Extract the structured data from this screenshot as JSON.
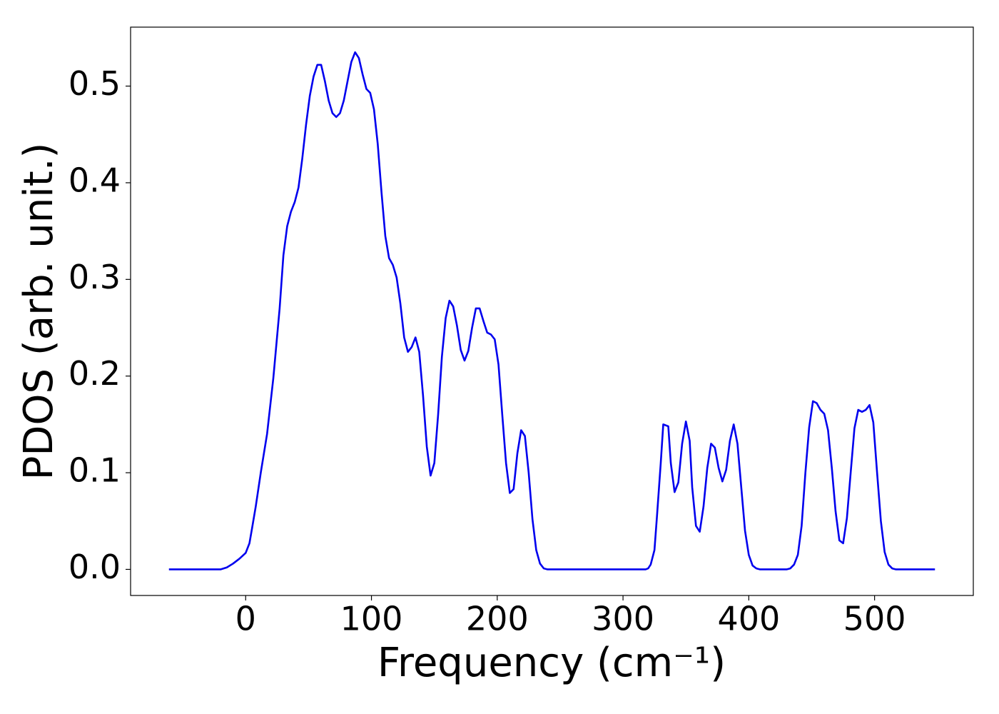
{
  "chart_data": {
    "type": "line",
    "xlabel": "Frequency (cm⁻¹)",
    "ylabel": "PDOS (arb. unit.)",
    "xlim": [
      -91.5,
      578.5
    ],
    "ylim": [
      -0.027,
      0.561
    ],
    "xticks": [
      0,
      100,
      200,
      300,
      400,
      500
    ],
    "yticks": [
      {
        "value": 0,
        "label": "0.0"
      },
      0.1,
      0.2,
      0.3,
      0.4,
      0.5
    ],
    "grid": false,
    "series": [
      {
        "color": "#0000ee",
        "x": [
          -61,
          -20,
          -15,
          -10,
          -5,
          0,
          3,
          5,
          8,
          12,
          17,
          22,
          27,
          30,
          33,
          36,
          39,
          42,
          45,
          48,
          51,
          54,
          57,
          60,
          63,
          66,
          69,
          72,
          75,
          78,
          81,
          84,
          87,
          90,
          93,
          96,
          99,
          102,
          105,
          108,
          111,
          114,
          117,
          120,
          123,
          126,
          129,
          132,
          135,
          138,
          141,
          144,
          147,
          150,
          153,
          156,
          159,
          162,
          165,
          168,
          171,
          174,
          177,
          180,
          183,
          186,
          189,
          192,
          195,
          198,
          201,
          204,
          207,
          210,
          213,
          216,
          219,
          222,
          225,
          228,
          231,
          234,
          237,
          240,
          318,
          320,
          322,
          325,
          327,
          330,
          332,
          336,
          338,
          341,
          344,
          347,
          350,
          353,
          355,
          358,
          361,
          364,
          367,
          370,
          373,
          376,
          379,
          382,
          385,
          388,
          391,
          394,
          397,
          400,
          403,
          406,
          409,
          430,
          433,
          436,
          439,
          442,
          445,
          448,
          451,
          454,
          457,
          460,
          463,
          466,
          469,
          472,
          475,
          478,
          481,
          484,
          487,
          490,
          493,
          496,
          499,
          502,
          505,
          508,
          511,
          514,
          517,
          548
        ],
        "values": [
          0,
          0,
          0.002,
          0.006,
          0.011,
          0.017,
          0.027,
          0.042,
          0.065,
          0.1,
          0.14,
          0.198,
          0.27,
          0.325,
          0.355,
          0.37,
          0.38,
          0.395,
          0.425,
          0.46,
          0.49,
          0.51,
          0.522,
          0.522,
          0.505,
          0.485,
          0.472,
          0.468,
          0.472,
          0.485,
          0.505,
          0.525,
          0.535,
          0.529,
          0.512,
          0.497,
          0.493,
          0.476,
          0.44,
          0.39,
          0.345,
          0.322,
          0.315,
          0.302,
          0.275,
          0.24,
          0.225,
          0.23,
          0.24,
          0.225,
          0.18,
          0.127,
          0.097,
          0.11,
          0.16,
          0.22,
          0.26,
          0.278,
          0.272,
          0.252,
          0.227,
          0.216,
          0.226,
          0.25,
          0.27,
          0.27,
          0.257,
          0.245,
          0.243,
          0.238,
          0.212,
          0.16,
          0.11,
          0.079,
          0.083,
          0.12,
          0.144,
          0.138,
          0.1,
          0.052,
          0.02,
          0.006,
          0.001,
          0,
          0,
          0.001,
          0.005,
          0.02,
          0.055,
          0.11,
          0.15,
          0.148,
          0.11,
          0.08,
          0.09,
          0.13,
          0.153,
          0.133,
          0.085,
          0.045,
          0.039,
          0.065,
          0.105,
          0.13,
          0.126,
          0.105,
          0.091,
          0.103,
          0.133,
          0.15,
          0.13,
          0.085,
          0.04,
          0.015,
          0.004,
          0.001,
          0,
          0,
          0.001,
          0.005,
          0.015,
          0.045,
          0.1,
          0.147,
          0.174,
          0.172,
          0.165,
          0.161,
          0.144,
          0.105,
          0.06,
          0.03,
          0.027,
          0.053,
          0.1,
          0.146,
          0.165,
          0.163,
          0.165,
          0.17,
          0.152,
          0.1,
          0.05,
          0.018,
          0.005,
          0.001,
          0,
          0
        ]
      }
    ]
  }
}
